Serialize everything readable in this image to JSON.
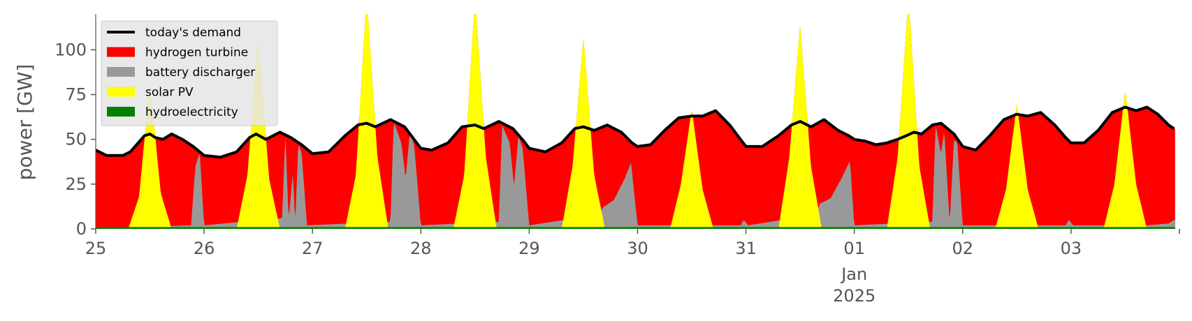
{
  "chart_data": {
    "type": "area",
    "stacked": true,
    "ylabel": "power [GW]",
    "xlabel": "",
    "ylim": [
      0,
      120
    ],
    "yticks": [
      0,
      25,
      50,
      75,
      100
    ],
    "x_start": "2024-12-25T00:00",
    "x_end": "2025-01-03T23:00",
    "x_ticks": [
      {
        "label": "25",
        "date": "2024-12-25"
      },
      {
        "label": "26",
        "date": "2024-12-26"
      },
      {
        "label": "27",
        "date": "2024-12-27"
      },
      {
        "label": "28",
        "date": "2024-12-28"
      },
      {
        "label": "29",
        "date": "2024-12-29"
      },
      {
        "label": "30",
        "date": "2024-12-30"
      },
      {
        "label": "31",
        "date": "2024-12-31"
      },
      {
        "label": "01",
        "sub1": "Jan",
        "sub2": "2025",
        "date": "2025-01-01"
      },
      {
        "label": "02",
        "date": "2025-01-02"
      },
      {
        "label": "03",
        "date": "2025-01-03"
      }
    ],
    "legend_position": "top-left",
    "grid": false,
    "series_kinds": {
      "hydroelectricity": "area",
      "battery discharger": "area",
      "hydrogen turbine": "area",
      "solar PV": "area",
      "today's demand": "line"
    },
    "series": [
      {
        "name": "today's demand",
        "color": "#000000",
        "kind": "line",
        "values": [
          [
            0,
            44
          ],
          [
            0.1,
            41
          ],
          [
            0.25,
            41
          ],
          [
            0.32,
            43
          ],
          [
            0.45,
            52
          ],
          [
            0.5,
            53
          ],
          [
            0.55,
            51
          ],
          [
            0.62,
            50
          ],
          [
            0.7,
            53
          ],
          [
            0.8,
            50
          ],
          [
            0.9,
            46
          ],
          [
            1.0,
            41
          ],
          [
            1.15,
            40
          ],
          [
            1.3,
            43
          ],
          [
            1.42,
            51
          ],
          [
            1.48,
            53
          ],
          [
            1.57,
            50
          ],
          [
            1.7,
            54
          ],
          [
            1.8,
            51
          ],
          [
            1.9,
            47
          ],
          [
            2.0,
            42
          ],
          [
            2.15,
            43
          ],
          [
            2.3,
            52
          ],
          [
            2.42,
            58
          ],
          [
            2.5,
            59
          ],
          [
            2.58,
            57
          ],
          [
            2.72,
            61
          ],
          [
            2.85,
            57
          ],
          [
            2.95,
            49
          ],
          [
            3.0,
            45
          ],
          [
            3.1,
            44
          ],
          [
            3.25,
            48
          ],
          [
            3.38,
            57
          ],
          [
            3.5,
            58
          ],
          [
            3.58,
            56
          ],
          [
            3.72,
            60
          ],
          [
            3.85,
            56
          ],
          [
            3.95,
            49
          ],
          [
            4.0,
            45
          ],
          [
            4.15,
            43
          ],
          [
            4.3,
            48
          ],
          [
            4.42,
            56
          ],
          [
            4.5,
            57
          ],
          [
            4.6,
            55
          ],
          [
            4.72,
            58
          ],
          [
            4.85,
            54
          ],
          [
            4.95,
            48
          ],
          [
            5.0,
            46
          ],
          [
            5.12,
            47
          ],
          [
            5.25,
            55
          ],
          [
            5.38,
            62
          ],
          [
            5.5,
            63
          ],
          [
            5.6,
            63
          ],
          [
            5.72,
            66
          ],
          [
            5.85,
            58
          ],
          [
            5.95,
            50
          ],
          [
            6.0,
            46
          ],
          [
            6.15,
            46
          ],
          [
            6.3,
            52
          ],
          [
            6.42,
            58
          ],
          [
            6.5,
            60
          ],
          [
            6.6,
            57
          ],
          [
            6.72,
            61
          ],
          [
            6.85,
            55
          ],
          [
            6.95,
            52
          ],
          [
            7.0,
            50
          ],
          [
            7.1,
            49
          ],
          [
            7.2,
            47
          ],
          [
            7.3,
            48
          ],
          [
            7.4,
            50
          ],
          [
            7.48,
            52
          ],
          [
            7.55,
            54
          ],
          [
            7.62,
            53
          ],
          [
            7.72,
            58
          ],
          [
            7.8,
            59
          ],
          [
            7.92,
            53
          ],
          [
            8.0,
            46
          ],
          [
            8.12,
            44
          ],
          [
            8.25,
            52
          ],
          [
            8.38,
            61
          ],
          [
            8.5,
            64
          ],
          [
            8.6,
            63
          ],
          [
            8.72,
            65
          ],
          [
            8.85,
            58
          ],
          [
            8.95,
            51
          ],
          [
            9.0,
            48
          ],
          [
            9.12,
            48
          ],
          [
            9.25,
            55
          ],
          [
            9.38,
            65
          ],
          [
            9.5,
            68
          ],
          [
            9.6,
            66
          ],
          [
            9.7,
            68
          ],
          [
            9.8,
            64
          ],
          [
            9.9,
            58
          ],
          [
            9.95,
            56
          ]
        ]
      },
      {
        "name": "hydrogen turbine",
        "color": "#ff0000",
        "kind": "area"
      },
      {
        "name": "battery discharger",
        "color": "#999999",
        "kind": "area",
        "values": [
          [
            0,
            0
          ],
          [
            0.88,
            2
          ],
          [
            0.92,
            35
          ],
          [
            0.96,
            43
          ],
          [
            1.0,
            2
          ],
          [
            1.72,
            6
          ],
          [
            1.75,
            53
          ],
          [
            1.78,
            5
          ],
          [
            1.82,
            32
          ],
          [
            1.84,
            3
          ],
          [
            1.87,
            48
          ],
          [
            1.9,
            42
          ],
          [
            1.95,
            2
          ],
          [
            2.72,
            4
          ],
          [
            2.75,
            60
          ],
          [
            2.82,
            48
          ],
          [
            2.86,
            28
          ],
          [
            2.9,
            55
          ],
          [
            2.94,
            46
          ],
          [
            3.0,
            2
          ],
          [
            3.72,
            4
          ],
          [
            3.75,
            58
          ],
          [
            3.82,
            48
          ],
          [
            3.86,
            24
          ],
          [
            3.9,
            52
          ],
          [
            3.94,
            45
          ],
          [
            4.0,
            2
          ],
          [
            4.65,
            8
          ],
          [
            4.68,
            12
          ],
          [
            4.78,
            16
          ],
          [
            4.88,
            28
          ],
          [
            4.94,
            37
          ],
          [
            5.0,
            2
          ],
          [
            5.95,
            2
          ],
          [
            5.98,
            5
          ],
          [
            6.02,
            2
          ],
          [
            6.65,
            8
          ],
          [
            6.68,
            14
          ],
          [
            6.78,
            17
          ],
          [
            6.88,
            28
          ],
          [
            6.96,
            38
          ],
          [
            7.0,
            2
          ],
          [
            7.72,
            4
          ],
          [
            7.75,
            58
          ],
          [
            7.8,
            42
          ],
          [
            7.83,
            55
          ],
          [
            7.88,
            3
          ],
          [
            7.92,
            50
          ],
          [
            7.95,
            48
          ],
          [
            8.0,
            2
          ],
          [
            8.95,
            2
          ],
          [
            8.98,
            5
          ],
          [
            9.02,
            2
          ],
          [
            9.7,
            2
          ],
          [
            9.9,
            3
          ],
          [
            9.95,
            5
          ]
        ]
      },
      {
        "name": "solar PV",
        "color": "#ffff00",
        "kind": "area",
        "peaks": [
          0.5,
          1.5,
          2.5,
          3.5,
          4.5,
          5.5,
          6.5,
          7.5,
          8.5,
          9.5
        ],
        "values": [
          [
            0.3,
            0
          ],
          [
            0.4,
            18
          ],
          [
            0.5,
            82
          ],
          [
            0.6,
            20
          ],
          [
            0.7,
            0
          ],
          [
            1.3,
            0
          ],
          [
            1.4,
            30
          ],
          [
            1.5,
            107
          ],
          [
            1.6,
            28
          ],
          [
            1.7,
            0
          ],
          [
            2.3,
            0
          ],
          [
            2.4,
            30
          ],
          [
            2.5,
            130
          ],
          [
            2.6,
            40
          ],
          [
            2.7,
            0
          ],
          [
            3.3,
            0
          ],
          [
            3.4,
            30
          ],
          [
            3.5,
            130
          ],
          [
            3.6,
            40
          ],
          [
            3.7,
            0
          ],
          [
            4.3,
            0
          ],
          [
            4.4,
            35
          ],
          [
            4.5,
            107
          ],
          [
            4.6,
            30
          ],
          [
            4.7,
            0
          ],
          [
            5.3,
            0
          ],
          [
            5.4,
            25
          ],
          [
            5.5,
            67
          ],
          [
            5.6,
            22
          ],
          [
            5.7,
            0
          ],
          [
            6.3,
            0
          ],
          [
            6.4,
            40
          ],
          [
            6.5,
            114
          ],
          [
            6.6,
            35
          ],
          [
            6.7,
            0
          ],
          [
            7.3,
            0
          ],
          [
            7.4,
            40
          ],
          [
            7.5,
            130
          ],
          [
            7.6,
            35
          ],
          [
            7.7,
            0
          ],
          [
            8.3,
            0
          ],
          [
            8.4,
            22
          ],
          [
            8.5,
            70
          ],
          [
            8.6,
            22
          ],
          [
            8.7,
            0
          ],
          [
            9.3,
            0
          ],
          [
            9.4,
            25
          ],
          [
            9.5,
            78
          ],
          [
            9.6,
            25
          ],
          [
            9.7,
            0
          ]
        ]
      },
      {
        "name": "hydroelectricity",
        "color": "#008000",
        "kind": "area",
        "values": [
          [
            0,
            1
          ],
          [
            9.95,
            1
          ]
        ]
      }
    ],
    "legend": [
      {
        "label": "today's demand",
        "color": "#000000",
        "kind": "line"
      },
      {
        "label": "hydrogen turbine",
        "color": "#ff0000",
        "kind": "patch"
      },
      {
        "label": "battery discharger",
        "color": "#999999",
        "kind": "patch"
      },
      {
        "label": "solar PV",
        "color": "#ffff00",
        "kind": "patch"
      },
      {
        "label": "hydroelectricity",
        "color": "#008000",
        "kind": "patch"
      }
    ]
  }
}
